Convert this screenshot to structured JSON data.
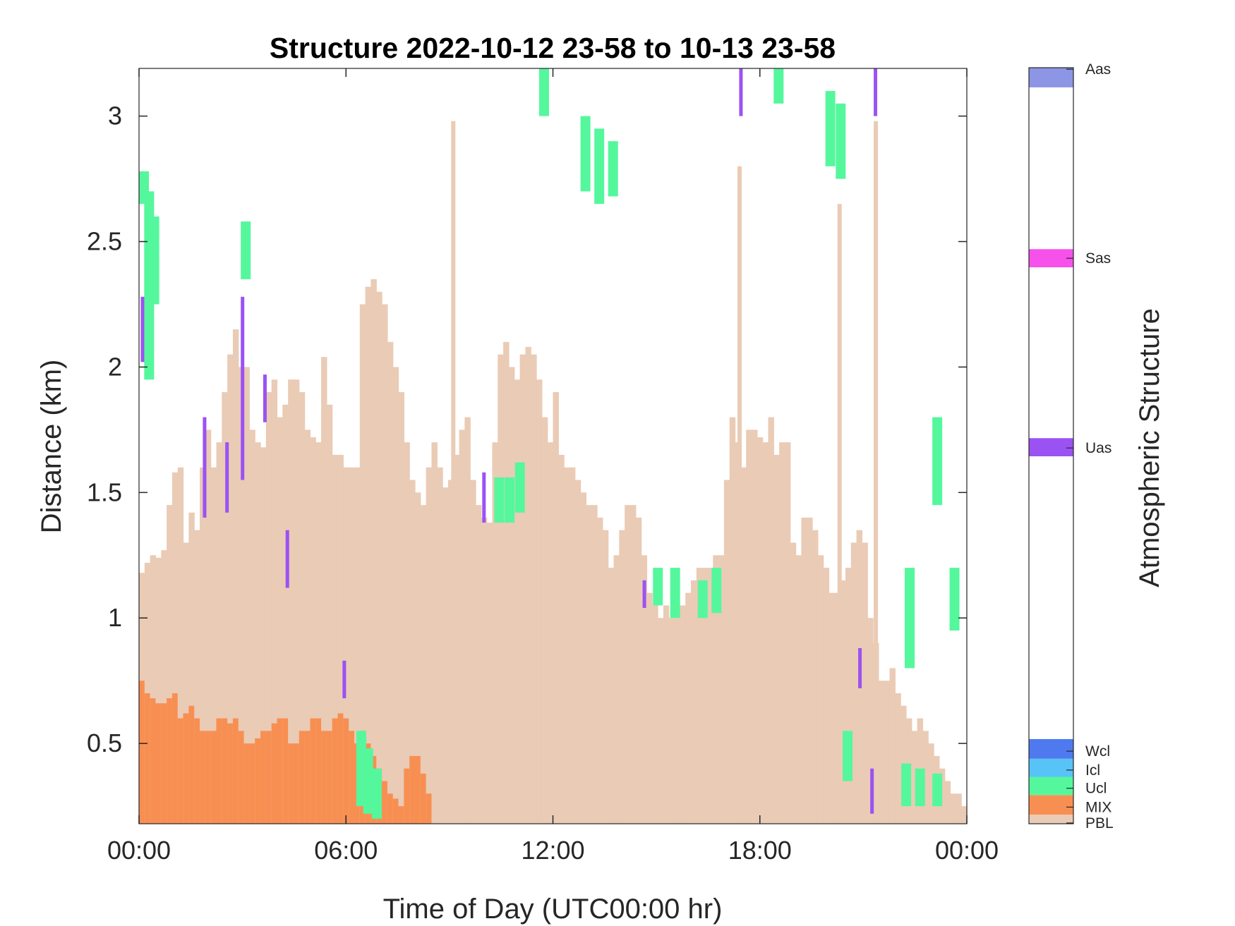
{
  "chart_data": {
    "type": "heatmap",
    "title": "Structure 2022-10-12 23-58 to 10-13 23-58",
    "xlabel": "Time of Day (UTC00:00 hr)",
    "ylabel": "Distance (km)",
    "xlim_hours": [
      0,
      24
    ],
    "ylim": [
      0.18,
      3.19
    ],
    "x_tick_labels": [
      "00:00",
      "06:00",
      "12:00",
      "18:00",
      "00:00"
    ],
    "x_tick_hours": [
      0,
      6,
      12,
      18,
      24
    ],
    "y_ticks": [
      0.5,
      1,
      1.5,
      2,
      2.5,
      3
    ],
    "y_tick_labels": [
      "0.5",
      "1",
      "1.5",
      "2",
      "2.5",
      "3"
    ],
    "grid": false,
    "colorbar": {
      "label": "Atmospheric Structure",
      "classes": [
        {
          "name": "PBL",
          "color": "#EACBB5"
        },
        {
          "name": "MIX",
          "color": "#F88F52"
        },
        {
          "name": "Ucl",
          "color": "#55F79D"
        },
        {
          "name": "Icl",
          "color": "#57C3F7"
        },
        {
          "name": "Wcl",
          "color": "#4F7AEF"
        },
        {
          "name": "Uas",
          "color": "#9B52F3"
        },
        {
          "name": "Sas",
          "color": "#F751EB"
        },
        {
          "name": "Aas",
          "color": "#8D95E5"
        }
      ]
    },
    "pbl_top_km": [
      1.18,
      1.22,
      1.25,
      1.24,
      1.27,
      1.45,
      1.58,
      1.6,
      1.3,
      1.42,
      1.35,
      1.6,
      1.75,
      1.6,
      1.7,
      1.9,
      2.05,
      2.15,
      2.0,
      2.0,
      1.75,
      1.7,
      1.68,
      1.9,
      1.95,
      1.8,
      1.85,
      1.95,
      1.95,
      1.9,
      1.75,
      1.72,
      1.7,
      2.04,
      1.85,
      1.65,
      1.65,
      1.6,
      1.6,
      1.6,
      2.25,
      2.32,
      2.35,
      2.3,
      2.25,
      2.1,
      2.0,
      1.9,
      1.7,
      1.55,
      1.5,
      1.45,
      1.6,
      1.7,
      1.6,
      1.52,
      1.55,
      1.65,
      1.75,
      1.8,
      1.55,
      1.45,
      1.4,
      1.38,
      1.7,
      2.05,
      2.1,
      2.0,
      1.95,
      2.05,
      2.08,
      2.05,
      1.95,
      1.8,
      1.7,
      1.9,
      1.65,
      1.6,
      1.6,
      1.55,
      1.5,
      1.45,
      1.45,
      1.4,
      1.35,
      1.2,
      1.25,
      1.35,
      1.45,
      1.45,
      1.4,
      1.25,
      1.1,
      1.05,
      1.0,
      1.05,
      1.0,
      1.0,
      1.05,
      1.1,
      1.15,
      1.2,
      1.2,
      1.2,
      1.25,
      1.25,
      1.55,
      1.8,
      1.7,
      1.6,
      1.75,
      1.75,
      1.72,
      1.7,
      1.8,
      1.65,
      1.7,
      1.7,
      1.3,
      1.25,
      1.4,
      1.4,
      1.35,
      1.25,
      1.2,
      1.1,
      1.1,
      1.15,
      1.2,
      1.3,
      1.35,
      1.3,
      1.0,
      0.9,
      0.75,
      0.75,
      0.8,
      0.7,
      0.65,
      0.6,
      0.55,
      0.6,
      0.55,
      0.5,
      0.45,
      0.4,
      0.35,
      0.3,
      0.3,
      0.25
    ],
    "mix_top_km": [
      0.75,
      0.7,
      0.68,
      0.66,
      0.66,
      0.68,
      0.7,
      0.6,
      0.62,
      0.65,
      0.6,
      0.55,
      0.55,
      0.55,
      0.6,
      0.6,
      0.58,
      0.6,
      0.55,
      0.5,
      0.5,
      0.52,
      0.55,
      0.55,
      0.58,
      0.6,
      0.6,
      0.5,
      0.5,
      0.55,
      0.55,
      0.6,
      0.6,
      0.55,
      0.55,
      0.6,
      0.62,
      0.6,
      0.55,
      0.5,
      0.55,
      0.5,
      0.45,
      0.4,
      0.35,
      0.3,
      0.28,
      0.25,
      0.4,
      0.45,
      0.45,
      0.38,
      0.3,
      0.18,
      0.18,
      0.18,
      0.18,
      0.18,
      0.18,
      0.18,
      0.18,
      0.18,
      0.18,
      0.18,
      0.18,
      0.18,
      0.18,
      0.18,
      0.18,
      0.18,
      0.18,
      0.18,
      0.18,
      0.18,
      0.18,
      0.18,
      0.18,
      0.18,
      0.18,
      0.18,
      0.18,
      0.18,
      0.18,
      0.18,
      0.18,
      0.18,
      0.18,
      0.18,
      0.18,
      0.18,
      0.18,
      0.18,
      0.18,
      0.18,
      0.18,
      0.18,
      0.18,
      0.18,
      0.18,
      0.18,
      0.18,
      0.18,
      0.18,
      0.18,
      0.18,
      0.18,
      0.18,
      0.18,
      0.18,
      0.18,
      0.18,
      0.18,
      0.18,
      0.18,
      0.18,
      0.18,
      0.18,
      0.18,
      0.18,
      0.18,
      0.18,
      0.18,
      0.18,
      0.18,
      0.18,
      0.18,
      0.18,
      0.18,
      0.18,
      0.18,
      0.18,
      0.18,
      0.18,
      0.18,
      0.18,
      0.18,
      0.18,
      0.18,
      0.18,
      0.18,
      0.18,
      0.18,
      0.18,
      0.18,
      0.18,
      0.18,
      0.18,
      0.18,
      0.18,
      0.18
    ],
    "pbl_spikes": [
      {
        "hour": 9.05,
        "top_km": 2.98
      },
      {
        "hour": 17.35,
        "top_km": 2.8
      },
      {
        "hour": 21.3,
        "top_km": 2.98
      },
      {
        "hour": 20.25,
        "top_km": 2.65
      }
    ],
    "cloud_segments": [
      {
        "hour": 0.0,
        "y0": 2.65,
        "y1": 2.78,
        "cls": "Ucl"
      },
      {
        "hour": 0.15,
        "y0": 1.95,
        "y1": 2.7,
        "cls": "Ucl"
      },
      {
        "hour": 0.3,
        "y0": 2.25,
        "y1": 2.6,
        "cls": "Ucl"
      },
      {
        "hour": 0.05,
        "y0": 2.02,
        "y1": 2.28,
        "cls": "Uas"
      },
      {
        "hour": 2.95,
        "y0": 2.35,
        "y1": 2.58,
        "cls": "Ucl"
      },
      {
        "hour": 2.95,
        "y0": 1.55,
        "y1": 2.28,
        "cls": "Uas"
      },
      {
        "hour": 2.5,
        "y0": 1.42,
        "y1": 1.7,
        "cls": "Uas"
      },
      {
        "hour": 1.85,
        "y0": 1.4,
        "y1": 1.8,
        "cls": "Uas"
      },
      {
        "hour": 3.6,
        "y0": 1.78,
        "y1": 1.97,
        "cls": "Uas"
      },
      {
        "hour": 4.25,
        "y0": 1.12,
        "y1": 1.35,
        "cls": "Uas"
      },
      {
        "hour": 5.9,
        "y0": 0.68,
        "y1": 0.83,
        "cls": "Uas"
      },
      {
        "hour": 6.3,
        "y0": 0.25,
        "y1": 0.55,
        "cls": "Ucl"
      },
      {
        "hour": 6.5,
        "y0": 0.22,
        "y1": 0.48,
        "cls": "Ucl"
      },
      {
        "hour": 6.75,
        "y0": 0.2,
        "y1": 0.4,
        "cls": "Ucl"
      },
      {
        "hour": 10.3,
        "y0": 1.38,
        "y1": 1.56,
        "cls": "Ucl"
      },
      {
        "hour": 10.6,
        "y0": 1.38,
        "y1": 1.56,
        "cls": "Ucl"
      },
      {
        "hour": 10.9,
        "y0": 1.42,
        "y1": 1.62,
        "cls": "Ucl"
      },
      {
        "hour": 9.95,
        "y0": 1.38,
        "y1": 1.58,
        "cls": "Uas"
      },
      {
        "hour": 12.8,
        "y0": 2.7,
        "y1": 3.0,
        "cls": "Ucl"
      },
      {
        "hour": 13.2,
        "y0": 2.65,
        "y1": 2.95,
        "cls": "Ucl"
      },
      {
        "hour": 13.6,
        "y0": 2.68,
        "y1": 2.9,
        "cls": "Ucl"
      },
      {
        "hour": 11.6,
        "y0": 3.0,
        "y1": 3.19,
        "cls": "Ucl"
      },
      {
        "hour": 14.9,
        "y0": 1.05,
        "y1": 1.2,
        "cls": "Ucl"
      },
      {
        "hour": 15.4,
        "y0": 1.0,
        "y1": 1.2,
        "cls": "Ucl"
      },
      {
        "hour": 16.2,
        "y0": 1.0,
        "y1": 1.15,
        "cls": "Ucl"
      },
      {
        "hour": 16.6,
        "y0": 1.02,
        "y1": 1.2,
        "cls": "Ucl"
      },
      {
        "hour": 14.6,
        "y0": 1.04,
        "y1": 1.15,
        "cls": "Uas"
      },
      {
        "hour": 17.4,
        "y0": 3.0,
        "y1": 3.19,
        "cls": "Uas"
      },
      {
        "hour": 18.4,
        "y0": 3.05,
        "y1": 3.19,
        "cls": "Ucl"
      },
      {
        "hour": 19.9,
        "y0": 2.8,
        "y1": 3.1,
        "cls": "Ucl"
      },
      {
        "hour": 20.2,
        "y0": 2.75,
        "y1": 3.05,
        "cls": "Ucl"
      },
      {
        "hour": 20.85,
        "y0": 0.72,
        "y1": 0.88,
        "cls": "Uas"
      },
      {
        "hour": 21.3,
        "y0": 3.0,
        "y1": 3.19,
        "cls": "Uas"
      },
      {
        "hour": 20.4,
        "y0": 0.35,
        "y1": 0.55,
        "cls": "Ucl"
      },
      {
        "hour": 21.2,
        "y0": 0.22,
        "y1": 0.4,
        "cls": "Uas"
      },
      {
        "hour": 22.1,
        "y0": 0.25,
        "y1": 0.42,
        "cls": "Ucl"
      },
      {
        "hour": 22.5,
        "y0": 0.25,
        "y1": 0.4,
        "cls": "Ucl"
      },
      {
        "hour": 23.0,
        "y0": 0.25,
        "y1": 0.38,
        "cls": "Ucl"
      },
      {
        "hour": 22.2,
        "y0": 0.8,
        "y1": 1.2,
        "cls": "Ucl"
      },
      {
        "hour": 23.5,
        "y0": 0.95,
        "y1": 1.2,
        "cls": "Ucl"
      },
      {
        "hour": 23.0,
        "y0": 1.45,
        "y1": 1.8,
        "cls": "Ucl"
      }
    ]
  }
}
